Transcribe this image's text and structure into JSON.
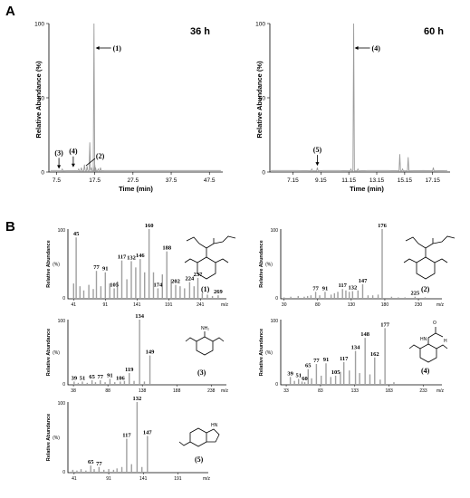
{
  "panel_labels": {
    "a": "A",
    "b": "B"
  },
  "compound_ids": [
    "(1)",
    "(2)",
    "(3)",
    "(4)",
    "(5)"
  ],
  "chart_data": [
    {
      "type": "line",
      "title": "36 h",
      "xlabel": "Time (min)",
      "ylabel": "Relative Abundance (%)",
      "xlim": [
        5.5,
        51
      ],
      "ylim": [
        0,
        100
      ],
      "xticks": [
        "7.5",
        "17.5",
        "27.5",
        "37.5",
        "47.5"
      ],
      "xtick_values": [
        7.5,
        17.5,
        27.5,
        37.5,
        47.5
      ],
      "yticks": [
        "0",
        "50",
        "100"
      ],
      "ytick_values": [
        0,
        50,
        100
      ],
      "x": [
        6.0,
        8.6,
        9.0,
        12.5,
        13.3,
        14.0,
        14.8,
        15.5,
        16.2,
        16.6,
        17.3,
        17.5,
        17.7,
        18.4,
        19.0,
        20.0,
        50.5
      ],
      "series": [
        {
          "values": [
            1,
            1,
            2,
            1,
            2,
            3,
            5,
            4,
            20,
            3,
            100,
            5,
            3,
            2,
            3,
            1,
            1
          ]
        }
      ],
      "annotations": [
        {
          "label": "(1)",
          "x": 17.5,
          "y": 100
        },
        {
          "label": "(3)",
          "x": 8.6,
          "y": 1
        },
        {
          "label": "(4)",
          "x": 13.3,
          "y": 2
        },
        {
          "label": "(2)",
          "x": 15.2,
          "y": 3
        }
      ]
    },
    {
      "type": "line",
      "title": "60 h",
      "xlabel": "Time (min)",
      "ylabel": "Relative Abundance (%)",
      "xlim": [
        5.5,
        18.4
      ],
      "ylim": [
        0,
        100
      ],
      "xticks": [
        "7.15",
        "9.15",
        "11.15",
        "13.15",
        "15.15",
        "17.15"
      ],
      "xtick_values": [
        7.15,
        9.15,
        11.15,
        13.15,
        15.15,
        17.15
      ],
      "yticks": [
        "0",
        "50",
        "100"
      ],
      "ytick_values": [
        0,
        50,
        100
      ],
      "x": [
        5.6,
        6.5,
        7.5,
        8.5,
        8.9,
        9.3,
        10.5,
        11.3,
        11.5,
        11.8,
        12.5,
        14.0,
        14.8,
        15.0,
        15.4,
        16.5,
        17.2,
        18.2
      ],
      "series": [
        {
          "values": [
            1,
            1,
            1,
            2,
            3,
            1,
            1,
            2,
            100,
            2,
            1,
            1,
            12,
            2,
            10,
            1,
            3,
            1
          ]
        }
      ],
      "annotations": [
        {
          "label": "(4)",
          "x": 11.5,
          "y": 100
        },
        {
          "label": "(5)",
          "x": 8.9,
          "y": 3
        }
      ]
    },
    {
      "type": "bar",
      "compound": "(1)",
      "ylabel": "Relative Abundance",
      "yunit": "(%)",
      "xunit": "m/z",
      "xlim": [
        32,
        282
      ],
      "ylim": [
        0,
        100
      ],
      "ytick_labels": [
        "100",
        "0"
      ],
      "xticks": [
        "41",
        "91",
        "141",
        "191",
        "241"
      ],
      "xtick_values": [
        41,
        91,
        141,
        191,
        241
      ],
      "x": [
        41,
        45,
        51,
        57,
        65,
        72,
        77,
        84,
        91,
        98,
        105,
        110,
        117,
        125,
        132,
        139,
        146,
        153,
        160,
        167,
        174,
        181,
        188,
        195,
        202,
        209,
        216,
        224,
        231,
        237,
        244,
        252,
        260,
        269
      ],
      "values": [
        22,
        88,
        18,
        12,
        20,
        14,
        40,
        18,
        38,
        22,
        15,
        25,
        55,
        28,
        54,
        45,
        57,
        38,
        100,
        38,
        15,
        35,
        68,
        28,
        20,
        18,
        15,
        24,
        18,
        30,
        8,
        6,
        4,
        5
      ],
      "labeled": {
        "45": 88,
        "77": 40,
        "91": 38,
        "105": 15,
        "117": 55,
        "132": 54,
        "146": 57,
        "160": 100,
        "174": 15,
        "188": 68,
        "202": 20,
        "224": 24,
        "237": 30,
        "269": 5
      }
    },
    {
      "type": "bar",
      "compound": "(2)",
      "ylabel": "Relative Abundance",
      "yunit": "(%)",
      "xunit": "m/z",
      "xlim": [
        25,
        265
      ],
      "ylim": [
        0,
        100
      ],
      "ytick_labels": [
        "100",
        "0"
      ],
      "xticks": [
        "30",
        "80",
        "130",
        "180",
        "230"
      ],
      "xtick_values": [
        30,
        80,
        130,
        180,
        230
      ],
      "x": [
        30,
        40,
        51,
        60,
        65,
        70,
        77,
        83,
        91,
        100,
        105,
        110,
        117,
        122,
        127,
        132,
        140,
        147,
        155,
        162,
        170,
        176,
        190,
        200,
        210,
        225,
        240
      ],
      "values": [
        2,
        3,
        4,
        3,
        4,
        5,
        10,
        5,
        10,
        6,
        8,
        10,
        14,
        12,
        10,
        11,
        12,
        21,
        5,
        5,
        6,
        100,
        3,
        2,
        2,
        3,
        2
      ],
      "labeled": {
        "77": 10,
        "91": 10,
        "117": 14,
        "132": 11,
        "147": 21,
        "176": 100,
        "225": 3
      }
    },
    {
      "type": "bar",
      "compound": "(3)",
      "ylabel": "Relative Abundance",
      "yunit": "(%)",
      "xunit": "m/z",
      "xlim": [
        30,
        260
      ],
      "ylim": [
        0,
        100
      ],
      "ytick_labels": [
        "100",
        "0"
      ],
      "xticks": [
        "38",
        "88",
        "138",
        "188",
        "238"
      ],
      "xtick_values": [
        38,
        88,
        138,
        188,
        238
      ],
      "x": [
        39,
        45,
        51,
        58,
        65,
        70,
        77,
        84,
        91,
        98,
        106,
        112,
        119,
        126,
        134,
        141,
        149
      ],
      "values": [
        5,
        3,
        5,
        3,
        7,
        4,
        7,
        4,
        9,
        4,
        5,
        6,
        18,
        6,
        100,
        5,
        45
      ],
      "labeled": {
        "39": 5,
        "51": 5,
        "65": 7,
        "77": 7,
        "91": 9,
        "106": 5,
        "119": 18,
        "134": 100,
        "149": 45
      }
    },
    {
      "type": "bar",
      "compound": "(4)",
      "ylabel": "Relative Abundance",
      "yunit": "(%)",
      "xunit": "m/z",
      "xlim": [
        25,
        260
      ],
      "ylim": [
        0,
        100
      ],
      "ytick_labels": [
        "100",
        "0"
      ],
      "xticks": [
        "33",
        "83",
        "133",
        "183",
        "233"
      ],
      "xtick_values": [
        33,
        83,
        133,
        183,
        233
      ],
      "x": [
        39,
        45,
        51,
        56,
        60,
        65,
        70,
        77,
        84,
        91,
        98,
        105,
        112,
        117,
        125,
        134,
        140,
        148,
        155,
        162,
        170,
        177,
        190
      ],
      "values": [
        12,
        6,
        9,
        5,
        4,
        24,
        10,
        32,
        14,
        33,
        12,
        14,
        20,
        35,
        22,
        52,
        18,
        72,
        16,
        42,
        8,
        87,
        4
      ],
      "labeled": {
        "39": 12,
        "51": 9,
        "60": 4,
        "65": 24,
        "77": 32,
        "91": 33,
        "105": 14,
        "117": 35,
        "134": 52,
        "148": 72,
        "162": 42,
        "177": 87
      }
    },
    {
      "type": "bar",
      "compound": "(5)",
      "ylabel": "Relative Abundance",
      "yunit": "(%)",
      "xunit": "m/z",
      "xlim": [
        32,
        235
      ],
      "ylim": [
        0,
        100
      ],
      "ytick_labels": [
        "100",
        "0"
      ],
      "xticks": [
        "41",
        "91",
        "141",
        "191"
      ],
      "xtick_values": [
        41,
        91,
        141,
        191
      ],
      "x": [
        39,
        45,
        51,
        58,
        65,
        70,
        77,
        84,
        91,
        98,
        103,
        110,
        117,
        124,
        132,
        139,
        147
      ],
      "values": [
        4,
        3,
        5,
        3,
        10,
        5,
        8,
        4,
        5,
        4,
        6,
        8,
        48,
        12,
        100,
        8,
        52
      ],
      "labeled": {
        "65": 10,
        "77": 8,
        "117": 48,
        "132": 100,
        "147": 52
      }
    }
  ]
}
